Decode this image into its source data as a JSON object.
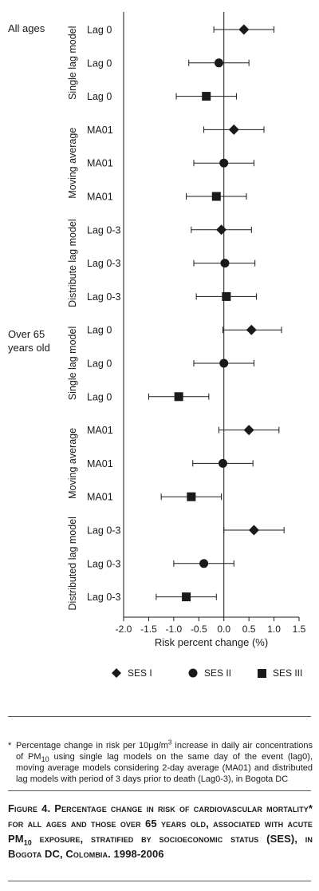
{
  "groups": [
    {
      "label": "All ages"
    },
    {
      "label_line1": "Over 65",
      "label_line2": "years old"
    }
  ],
  "chart_data": {
    "type": "forest",
    "xlabel": "Risk percent change (%)",
    "xlim": [
      -2.0,
      1.5
    ],
    "xticks": [
      "-2.0",
      "-1.5",
      "-1.0",
      "-0.5",
      "0.0",
      "0.5",
      "1.0",
      "1.5"
    ],
    "xtick_values": [
      -2.0,
      -1.5,
      -1.0,
      -0.5,
      0.0,
      0.5,
      1.0,
      1.5
    ],
    "series": [
      {
        "name": "SES I",
        "marker": "diamond"
      },
      {
        "name": "SES II",
        "marker": "circle"
      },
      {
        "name": "SES III",
        "marker": "square"
      }
    ],
    "sections": [
      {
        "label": "Single lag model"
      },
      {
        "label": "Moving average"
      },
      {
        "label": "Distribute lag model"
      },
      {
        "label": "Single lag model"
      },
      {
        "label": "Moving average"
      },
      {
        "label": "Distributed lag model"
      }
    ],
    "rows": [
      {
        "label": "Lag 0",
        "series": "SES I",
        "estimate": 0.4,
        "lower": -0.2,
        "upper": 1.0
      },
      {
        "label": "Lag 0",
        "series": "SES II",
        "estimate": -0.1,
        "lower": -0.7,
        "upper": 0.5
      },
      {
        "label": "Lag 0",
        "series": "SES III",
        "estimate": -0.35,
        "lower": -0.95,
        "upper": 0.25
      },
      {
        "label": "MA01",
        "series": "SES I",
        "estimate": 0.2,
        "lower": -0.4,
        "upper": 0.8
      },
      {
        "label": "MA01",
        "series": "SES II",
        "estimate": 0.0,
        "lower": -0.6,
        "upper": 0.6
      },
      {
        "label": "MA01",
        "series": "SES III",
        "estimate": -0.15,
        "lower": -0.75,
        "upper": 0.45
      },
      {
        "label": "Lag 0-3",
        "series": "SES I",
        "estimate": -0.05,
        "lower": -0.65,
        "upper": 0.55
      },
      {
        "label": "Lag 0-3",
        "series": "SES II",
        "estimate": 0.02,
        "lower": -0.6,
        "upper": 0.62
      },
      {
        "label": "Lag 0-3",
        "series": "SES III",
        "estimate": 0.05,
        "lower": -0.55,
        "upper": 0.65
      },
      {
        "label": "Lag 0",
        "series": "SES I",
        "estimate": 0.55,
        "lower": -0.02,
        "upper": 1.15
      },
      {
        "label": "Lag 0",
        "series": "SES II",
        "estimate": 0.0,
        "lower": -0.6,
        "upper": 0.6
      },
      {
        "label": "Lag 0",
        "series": "SES III",
        "estimate": -0.9,
        "lower": -1.5,
        "upper": -0.3
      },
      {
        "label": "MA01",
        "series": "SES I",
        "estimate": 0.5,
        "lower": -0.1,
        "upper": 1.1
      },
      {
        "label": "MA01",
        "series": "SES II",
        "estimate": -0.02,
        "lower": -0.62,
        "upper": 0.58
      },
      {
        "label": "MA01",
        "series": "SES III",
        "estimate": -0.65,
        "lower": -1.25,
        "upper": -0.05
      },
      {
        "label": "Lag 0-3",
        "series": "SES I",
        "estimate": 0.6,
        "lower": 0.0,
        "upper": 1.2
      },
      {
        "label": "Lag 0-3",
        "series": "SES II",
        "estimate": -0.4,
        "lower": -1.0,
        "upper": 0.2
      },
      {
        "label": "Lag 0-3",
        "series": "SES III",
        "estimate": -0.75,
        "lower": -1.35,
        "upper": -0.15
      }
    ]
  },
  "footnote": {
    "star": "*",
    "part1": "Percentage change in risk per 10μg/m",
    "sup": "3",
    "part2": " increase in daily air concentrations of PM",
    "sub": "10",
    "part3": " using single lag models on the same day of the event (lag0), moving average models considering 2-day average (MA01) and distributed lag models with period of 3 days prior to death (Lag0-3), in Bogota DC"
  },
  "caption": {
    "part1": "Figure 4. Percentage change in risk of cardiovascular mortality* for all ages and those over 65 years old, associated with acute PM",
    "sub": "10",
    "part2": " exposure, stratified by socioeconomic status (SES), in Bogota DC, Colombia. 1998-2006"
  }
}
